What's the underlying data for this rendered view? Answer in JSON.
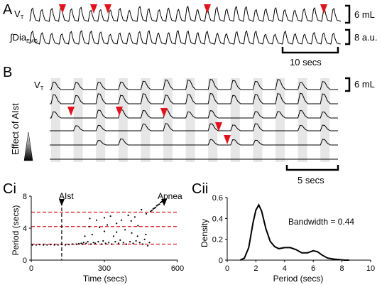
{
  "panels": {
    "A": {
      "label": "A",
      "trace1_label_main": "V",
      "trace1_label_sub": "T",
      "trace2_label_main": "∫Dia",
      "trace2_label_sub": "EMG",
      "scale1": "6 mL",
      "scale2": "8 a.u.",
      "time_scale": "10 secs"
    },
    "B": {
      "label": "B",
      "trace_label_main": "V",
      "trace_label_sub": "T",
      "side_label": "Effect of AIst",
      "scale": "6 mL",
      "time_scale": "5 secs"
    },
    "Ci": {
      "label": "Ci",
      "annotation_left": "AIst",
      "annotation_right": "Apnea"
    },
    "Cii": {
      "label": "Cii",
      "annotation": "Bandwidth = 0.44"
    }
  },
  "colors": {
    "arrow": "#e0141e",
    "dashed_line": "#e0141e",
    "shading": "#e6e6e6",
    "trace": "#000000"
  },
  "chart_data": [
    {
      "type": "scatter",
      "panel": "Ci",
      "xlabel": "Time (secs)",
      "ylabel": "Period (secs)",
      "xlim": [
        0,
        600
      ],
      "ylim": [
        0,
        8
      ],
      "xticks": [
        "0",
        "300",
        "600"
      ],
      "yticks": [
        "0",
        "4",
        "8"
      ],
      "reference_lines_y": [
        2,
        4.2,
        6
      ],
      "vline_x": 125,
      "series": [
        {
          "points": [
            [
              5,
              1.9
            ],
            [
              20,
              1.9
            ],
            [
              35,
              1.95
            ],
            [
              50,
              1.9
            ],
            [
              65,
              1.9
            ],
            [
              80,
              1.95
            ],
            [
              95,
              1.9
            ],
            [
              110,
              1.9
            ],
            [
              125,
              1.95
            ],
            [
              140,
              1.9
            ],
            [
              155,
              1.95
            ],
            [
              170,
              2.0
            ],
            [
              185,
              2.0
            ],
            [
              195,
              2.05
            ],
            [
              205,
              2.1
            ],
            [
              210,
              2.0
            ],
            [
              215,
              2.2
            ],
            [
              220,
              3.0
            ],
            [
              225,
              2.1
            ],
            [
              232,
              2.3
            ],
            [
              238,
              4.2
            ],
            [
              245,
              2.0
            ],
            [
              250,
              3.2
            ],
            [
              255,
              2.2
            ],
            [
              262,
              2.1
            ],
            [
              268,
              5.0
            ],
            [
              275,
              2.3
            ],
            [
              280,
              4.1
            ],
            [
              288,
              2.0
            ],
            [
              295,
              2.4
            ],
            [
              300,
              3.6
            ],
            [
              305,
              2.1
            ],
            [
              312,
              4.4
            ],
            [
              318,
              2.2
            ],
            [
              325,
              5.5
            ],
            [
              330,
              2.0
            ],
            [
              338,
              3.0
            ],
            [
              345,
              2.3
            ],
            [
              350,
              4.6
            ],
            [
              358,
              2.1
            ],
            [
              365,
              2.5
            ],
            [
              370,
              5.0
            ],
            [
              378,
              2.2
            ],
            [
              385,
              3.8
            ],
            [
              390,
              2.0
            ],
            [
              398,
              5.6
            ],
            [
              405,
              2.3
            ],
            [
              412,
              3.4
            ],
            [
              418,
              2.1
            ],
            [
              425,
              5.4
            ],
            [
              430,
              2.4
            ],
            [
              438,
              4.3
            ],
            [
              445,
              2.2
            ],
            [
              452,
              6.3
            ],
            [
              458,
              2.0
            ],
            [
              465,
              2.6
            ],
            [
              472,
              5.8
            ],
            [
              478,
              1.8
            ],
            [
              485,
              2.2
            ],
            [
              490,
              6.1
            ],
            [
              495,
              6.2
            ],
            [
              500,
              6.4
            ],
            [
              505,
              6.5
            ],
            [
              510,
              6.6
            ],
            [
              515,
              6.8
            ],
            [
              520,
              6.9
            ],
            [
              525,
              7.0
            ],
            [
              530,
              7.2
            ],
            [
              535,
              7.3
            ],
            [
              540,
              7.5
            ],
            [
              545,
              7.6
            ],
            [
              240,
              5.2
            ],
            [
              300,
              5.3
            ],
            [
              350,
              3.5
            ],
            [
              410,
              4.9
            ],
            [
              436,
              3.0
            ],
            [
              470,
              3.2
            ]
          ]
        }
      ]
    },
    {
      "type": "line",
      "panel": "Cii",
      "xlabel": "Period (secs)",
      "ylabel": "Density",
      "xlim": [
        0,
        10
      ],
      "ylim": [
        0,
        0.6
      ],
      "xticks": [
        "0",
        "2",
        "4",
        "6",
        "8",
        "10"
      ],
      "yticks": [
        "0",
        "0.2",
        "0.4",
        "0.6"
      ],
      "series": [
        {
          "x": [
            0.9,
            1.2,
            1.5,
            1.8,
            2.0,
            2.2,
            2.4,
            2.7,
            3.0,
            3.3,
            3.6,
            4.0,
            4.4,
            4.8,
            5.2,
            5.6,
            6.0,
            6.3,
            6.6,
            7.0,
            7.4,
            7.8,
            8.2,
            8.5
          ],
          "y": [
            0.0,
            0.02,
            0.12,
            0.36,
            0.48,
            0.53,
            0.47,
            0.3,
            0.18,
            0.13,
            0.11,
            0.12,
            0.12,
            0.1,
            0.07,
            0.07,
            0.09,
            0.08,
            0.05,
            0.02,
            0.01,
            0.005,
            0.0,
            0.0
          ]
        }
      ]
    }
  ]
}
